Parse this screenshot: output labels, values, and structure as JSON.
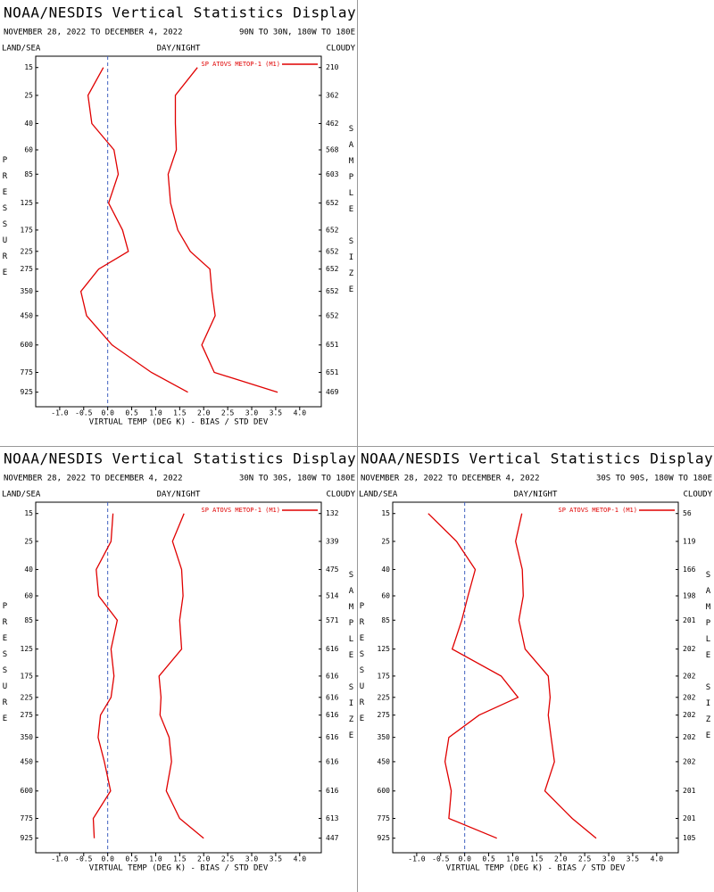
{
  "chart_data": [
    {
      "type": "line",
      "title": "NOAA/NESDIS Vertical Statistics Display",
      "date_range": "NOVEMBER 28, 2022 TO DECEMBER 4, 2022",
      "region": "90N TO 30N, 180W TO 180E",
      "land_sea": "LAND/SEA",
      "day_night": "DAY/NIGHT",
      "cloudy": "CLOUDY",
      "y_label": "PRESSURE",
      "y2_label": "SAMPLE SIZE",
      "x_label": "VIRTUAL TEMP (DEG K) - BIAS / STD DEV",
      "y": [
        15,
        25,
        40,
        60,
        85,
        125,
        175,
        225,
        275,
        350,
        450,
        600,
        775,
        925
      ],
      "sample_size": [
        210,
        362,
        462,
        568,
        603,
        652,
        652,
        652,
        652,
        652,
        652,
        651,
        651,
        469
      ],
      "series": [
        {
          "name": "SP ATOVS METOP-1 (M1)",
          "color": "#e00000",
          "bias": [
            -0.09,
            -0.41,
            -0.33,
            0.13,
            0.22,
            0.02,
            0.31,
            0.43,
            -0.19,
            -0.56,
            -0.44,
            0.09,
            0.91,
            1.67
          ],
          "std_dev": [
            1.87,
            1.41,
            1.41,
            1.43,
            1.26,
            1.31,
            1.46,
            1.72,
            2.13,
            2.17,
            2.24,
            1.96,
            2.22,
            3.54
          ]
        }
      ],
      "xlim": [
        -1.5,
        4.45
      ],
      "xticks": [
        {
          "value": -1,
          "label": "-1.0"
        },
        -0.5,
        {
          "value": 0,
          "label": "0.0"
        },
        0.5,
        {
          "value": 1,
          "label": "1.0"
        },
        1.5,
        {
          "value": 2,
          "label": "2.0"
        },
        2.5,
        {
          "value": 3,
          "label": "3.0"
        },
        3.5,
        {
          "value": 4,
          "label": "4.0"
        }
      ],
      "ylim": [
        1050,
        12
      ],
      "zero_line_color": "#4060c0"
    },
    {
      "type": "line",
      "title": "NOAA/NESDIS Vertical Statistics Display",
      "date_range": "NOVEMBER 28, 2022 TO DECEMBER 4, 2022",
      "region": "30N TO 30S, 180W TO 180E",
      "land_sea": "LAND/SEA",
      "day_night": "DAY/NIGHT",
      "cloudy": "CLOUDY",
      "y_label": "PRESSURE",
      "y2_label": "SAMPLE SIZE",
      "x_label": "VIRTUAL TEMP (DEG K) - BIAS / STD DEV",
      "y": [
        15,
        25,
        40,
        60,
        85,
        125,
        175,
        225,
        275,
        350,
        450,
        600,
        775,
        925
      ],
      "sample_size": [
        132,
        339,
        475,
        514,
        571,
        616,
        616,
        616,
        616,
        616,
        616,
        616,
        613,
        447
      ],
      "series": [
        {
          "name": "SP ATOVS METOP-1 (M1)",
          "color": "#e00000",
          "bias": [
            0.11,
            0.07,
            -0.24,
            -0.19,
            0.2,
            0.07,
            0.13,
            0.07,
            -0.15,
            -0.2,
            -0.07,
            0.06,
            -0.3,
            -0.28
          ],
          "std_dev": [
            1.59,
            1.35,
            1.54,
            1.57,
            1.5,
            1.54,
            1.07,
            1.11,
            1.09,
            1.28,
            1.33,
            1.22,
            1.5,
            2.0
          ]
        }
      ],
      "xlim": [
        -1.5,
        4.45
      ],
      "xticks": [
        {
          "value": -1,
          "label": "-1.0"
        },
        -0.5,
        {
          "value": 0,
          "label": "0.0"
        },
        0.5,
        {
          "value": 1,
          "label": "1.0"
        },
        1.5,
        {
          "value": 2,
          "label": "2.0"
        },
        2.5,
        {
          "value": 3,
          "label": "3.0"
        },
        3.5,
        {
          "value": 4,
          "label": "4.0"
        }
      ],
      "ylim": [
        1050,
        12
      ],
      "zero_line_color": "#4060c0"
    },
    {
      "type": "line",
      "title": "NOAA/NESDIS Vertical Statistics Display",
      "date_range": "NOVEMBER 28, 2022 TO DECEMBER 4, 2022",
      "region": "30S TO 90S, 180W TO 180E",
      "land_sea": "LAND/SEA",
      "day_night": "DAY/NIGHT",
      "cloudy": "CLOUDY",
      "y_label": "PRESSURE",
      "y2_label": "SAMPLE SIZE",
      "x_label": "VIRTUAL TEMP (DEG K) - BIAS / STD DEV",
      "y": [
        15,
        25,
        40,
        60,
        85,
        125,
        175,
        225,
        275,
        350,
        450,
        600,
        775,
        925
      ],
      "sample_size": [
        56,
        119,
        166,
        198,
        201,
        202,
        202,
        202,
        202,
        202,
        202,
        201,
        201,
        105
      ],
      "series": [
        {
          "name": "SP ATOVS METOP-1 (M1)",
          "color": "#e00000",
          "bias": [
            -0.76,
            -0.17,
            0.22,
            0.07,
            -0.06,
            -0.26,
            0.76,
            1.11,
            0.3,
            -0.33,
            -0.41,
            -0.28,
            -0.33,
            0.67
          ],
          "std_dev": [
            1.19,
            1.06,
            1.2,
            1.22,
            1.13,
            1.26,
            1.74,
            1.78,
            1.74,
            1.8,
            1.87,
            1.67,
            2.24,
            2.74
          ]
        }
      ],
      "xlim": [
        -1.5,
        4.45
      ],
      "xticks": [
        {
          "value": -1,
          "label": "-1.0"
        },
        -0.5,
        {
          "value": 0,
          "label": "0.0"
        },
        0.5,
        {
          "value": 1,
          "label": "1.0"
        },
        1.5,
        {
          "value": 2,
          "label": "2.0"
        },
        2.5,
        {
          "value": 3,
          "label": "3.0"
        },
        3.5,
        {
          "value": 4,
          "label": "4.0"
        }
      ],
      "ylim": [
        1050,
        12
      ],
      "zero_line_color": "#4060c0"
    }
  ]
}
